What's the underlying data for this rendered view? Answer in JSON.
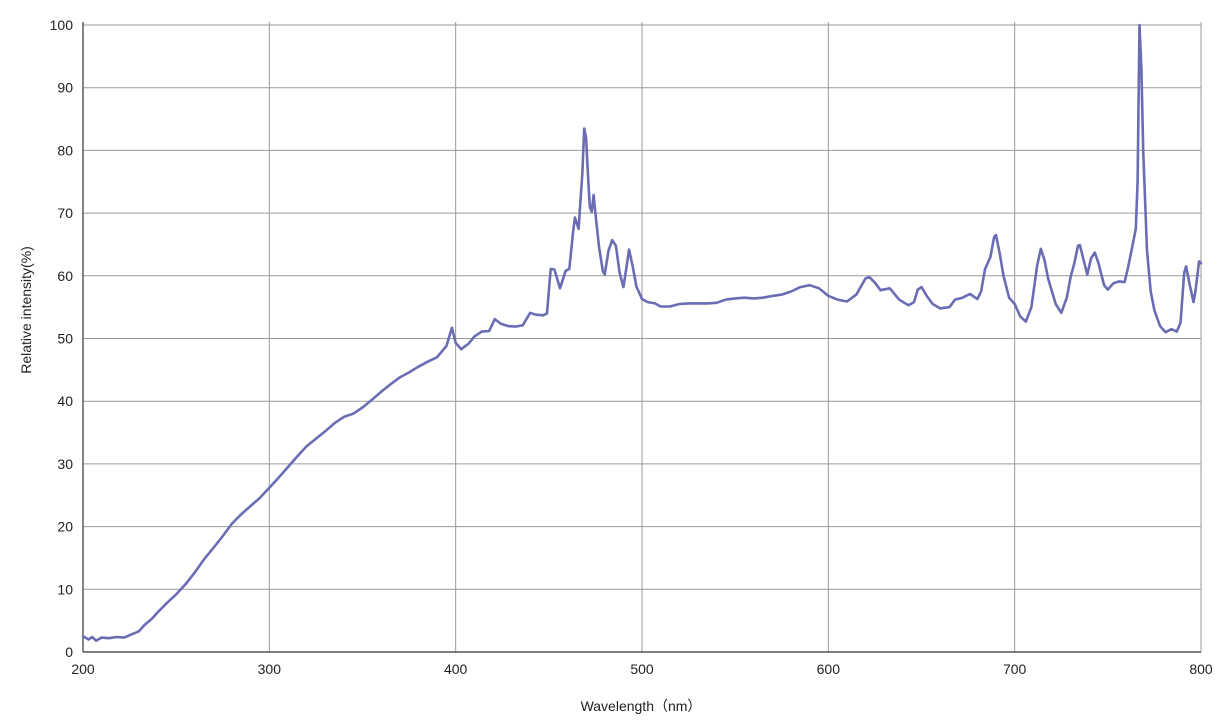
{
  "chart_data": {
    "type": "line",
    "title": "",
    "xlabel": "Wavelength（nm）",
    "ylabel": "Relative intensity(%)",
    "xlim": [
      200,
      800
    ],
    "ylim": [
      0,
      100
    ],
    "x_ticks": [
      200,
      300,
      400,
      500,
      600,
      700,
      800
    ],
    "y_ticks": [
      0,
      10,
      20,
      30,
      40,
      50,
      60,
      70,
      80,
      90,
      100
    ],
    "grid": true,
    "legend": "none",
    "line_color": "#6a6db3",
    "grid_color": "#9a9a9a",
    "series": [
      {
        "points": [
          [
            200,
            2.5
          ],
          [
            203,
            2.0
          ],
          [
            205,
            2.4
          ],
          [
            207,
            1.8
          ],
          [
            210,
            2.3
          ],
          [
            214,
            2.2
          ],
          [
            218,
            2.4
          ],
          [
            222,
            2.3
          ],
          [
            226,
            2.8
          ],
          [
            230,
            3.3
          ],
          [
            233,
            4.3
          ],
          [
            237,
            5.3
          ],
          [
            240,
            6.3
          ],
          [
            245,
            7.8
          ],
          [
            250,
            9.2
          ],
          [
            255,
            10.8
          ],
          [
            260,
            12.7
          ],
          [
            265,
            14.8
          ],
          [
            270,
            16.6
          ],
          [
            275,
            18.5
          ],
          [
            280,
            20.5
          ],
          [
            285,
            22.0
          ],
          [
            290,
            23.3
          ],
          [
            295,
            24.6
          ],
          [
            300,
            26.2
          ],
          [
            305,
            27.8
          ],
          [
            310,
            29.5
          ],
          [
            315,
            31.2
          ],
          [
            320,
            32.8
          ],
          [
            325,
            34.0
          ],
          [
            330,
            35.2
          ],
          [
            335,
            36.5
          ],
          [
            340,
            37.5
          ],
          [
            345,
            38.0
          ],
          [
            350,
            39.0
          ],
          [
            355,
            40.2
          ],
          [
            360,
            41.5
          ],
          [
            365,
            42.7
          ],
          [
            370,
            43.8
          ],
          [
            375,
            44.6
          ],
          [
            380,
            45.5
          ],
          [
            385,
            46.3
          ],
          [
            390,
            47.0
          ],
          [
            395,
            48.8
          ],
          [
            398,
            51.7
          ],
          [
            400,
            49.3
          ],
          [
            403,
            48.3
          ],
          [
            407,
            49.2
          ],
          [
            410,
            50.3
          ],
          [
            414,
            51.1
          ],
          [
            418,
            51.2
          ],
          [
            421,
            53.1
          ],
          [
            424,
            52.4
          ],
          [
            428,
            52.0
          ],
          [
            432,
            51.9
          ],
          [
            436,
            52.1
          ],
          [
            440,
            54.1
          ],
          [
            443,
            53.8
          ],
          [
            447,
            53.7
          ],
          [
            449,
            54.0
          ],
          [
            451,
            61.1
          ],
          [
            453,
            61.0
          ],
          [
            456,
            58.0
          ],
          [
            459,
            60.8
          ],
          [
            461,
            61.1
          ],
          [
            463,
            67.0
          ],
          [
            464,
            69.3
          ],
          [
            466,
            67.5
          ],
          [
            468,
            76.5
          ],
          [
            469,
            83.5
          ],
          [
            470,
            82.0
          ],
          [
            471,
            76.0
          ],
          [
            472,
            71.0
          ],
          [
            473,
            70.2
          ],
          [
            474,
            72.9
          ],
          [
            475,
            70.0
          ],
          [
            477,
            64.5
          ],
          [
            479,
            60.7
          ],
          [
            480,
            60.2
          ],
          [
            482,
            64.0
          ],
          [
            484,
            65.7
          ],
          [
            486,
            64.8
          ],
          [
            488,
            60.5
          ],
          [
            490,
            58.2
          ],
          [
            492,
            62.0
          ],
          [
            493,
            64.2
          ],
          [
            495,
            61.5
          ],
          [
            497,
            58.3
          ],
          [
            500,
            56.3
          ],
          [
            503,
            55.8
          ],
          [
            507,
            55.6
          ],
          [
            510,
            55.1
          ],
          [
            515,
            55.1
          ],
          [
            520,
            55.5
          ],
          [
            525,
            55.6
          ],
          [
            530,
            55.6
          ],
          [
            535,
            55.6
          ],
          [
            540,
            55.7
          ],
          [
            545,
            56.2
          ],
          [
            550,
            56.4
          ],
          [
            555,
            56.5
          ],
          [
            560,
            56.4
          ],
          [
            565,
            56.5
          ],
          [
            570,
            56.8
          ],
          [
            575,
            57.0
          ],
          [
            580,
            57.5
          ],
          [
            585,
            58.2
          ],
          [
            590,
            58.5
          ],
          [
            595,
            58.0
          ],
          [
            600,
            56.8
          ],
          [
            605,
            56.2
          ],
          [
            610,
            55.9
          ],
          [
            615,
            57.0
          ],
          [
            620,
            59.6
          ],
          [
            622,
            59.8
          ],
          [
            625,
            58.9
          ],
          [
            628,
            57.7
          ],
          [
            633,
            58.0
          ],
          [
            638,
            56.2
          ],
          [
            643,
            55.3
          ],
          [
            646,
            55.8
          ],
          [
            648,
            57.8
          ],
          [
            650,
            58.2
          ],
          [
            653,
            56.7
          ],
          [
            656,
            55.5
          ],
          [
            660,
            54.8
          ],
          [
            665,
            55.0
          ],
          [
            668,
            56.2
          ],
          [
            672,
            56.5
          ],
          [
            676,
            57.1
          ],
          [
            680,
            56.3
          ],
          [
            682,
            57.5
          ],
          [
            684,
            61.0
          ],
          [
            687,
            63.0
          ],
          [
            689,
            66.2
          ],
          [
            690,
            66.5
          ],
          [
            692,
            63.5
          ],
          [
            694,
            60.0
          ],
          [
            697,
            56.5
          ],
          [
            700,
            55.5
          ],
          [
            703,
            53.5
          ],
          [
            706,
            52.7
          ],
          [
            709,
            55.0
          ],
          [
            712,
            61.5
          ],
          [
            714,
            64.3
          ],
          [
            716,
            62.5
          ],
          [
            718,
            59.5
          ],
          [
            722,
            55.5
          ],
          [
            725,
            54.1
          ],
          [
            728,
            56.5
          ],
          [
            730,
            59.8
          ],
          [
            732,
            62.0
          ],
          [
            734,
            64.8
          ],
          [
            735,
            64.9
          ],
          [
            737,
            62.5
          ],
          [
            739,
            60.2
          ],
          [
            741,
            62.8
          ],
          [
            743,
            63.7
          ],
          [
            745,
            62.0
          ],
          [
            748,
            58.5
          ],
          [
            750,
            57.8
          ],
          [
            753,
            58.8
          ],
          [
            756,
            59.1
          ],
          [
            759,
            59.0
          ],
          [
            761,
            61.5
          ],
          [
            763,
            64.5
          ],
          [
            765,
            67.5
          ],
          [
            766,
            75.0
          ],
          [
            767,
            100.0
          ],
          [
            768,
            93.0
          ],
          [
            769,
            80.0
          ],
          [
            771,
            64.0
          ],
          [
            773,
            57.5
          ],
          [
            775,
            54.5
          ],
          [
            778,
            52.0
          ],
          [
            781,
            51.0
          ],
          [
            784,
            51.5
          ],
          [
            787,
            51.1
          ],
          [
            789,
            52.5
          ],
          [
            791,
            60.5
          ],
          [
            792,
            61.5
          ],
          [
            794,
            58.5
          ],
          [
            796,
            55.8
          ],
          [
            797,
            57.5
          ],
          [
            799,
            62.3
          ],
          [
            800,
            62.0
          ]
        ]
      }
    ]
  }
}
